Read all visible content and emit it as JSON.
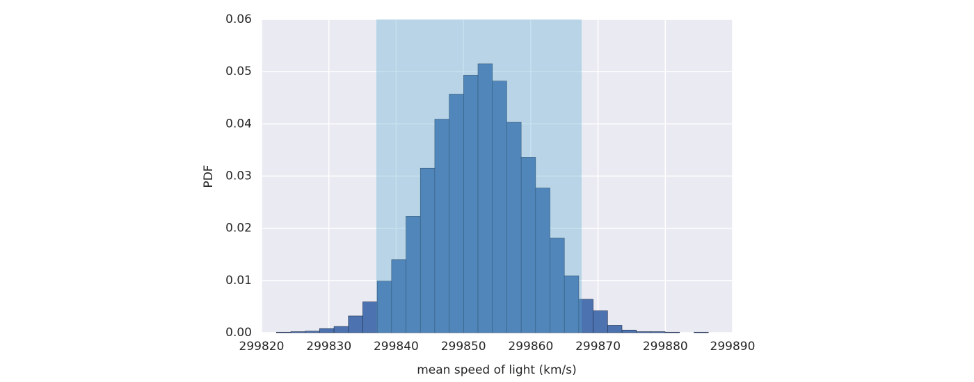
{
  "chart_data": {
    "type": "histogram",
    "xlabel": "mean speed of light (km/s)",
    "ylabel": "PDF",
    "bins": [
      299822.2,
      299824.34,
      299826.48,
      299828.62,
      299830.76,
      299832.9,
      299835.04,
      299837.18,
      299839.32,
      299841.46,
      299843.6,
      299845.74,
      299847.88,
      299850.02,
      299852.16,
      299854.3,
      299856.44,
      299858.58,
      299860.72,
      299862.86,
      299865.0,
      299867.14,
      299869.28,
      299871.42,
      299873.56,
      299875.7,
      299877.84,
      299879.98,
      299882.12,
      299884.26,
      299886.4
    ],
    "values": [
      0.0001,
      0.0002,
      0.0003,
      0.0008,
      0.0012,
      0.0032,
      0.0059,
      0.0099,
      0.014,
      0.0223,
      0.0315,
      0.0409,
      0.0457,
      0.0493,
      0.0515,
      0.0482,
      0.0403,
      0.0336,
      0.0277,
      0.0181,
      0.0109,
      0.0064,
      0.0042,
      0.0014,
      0.0005,
      0.0002,
      0.0002,
      0.0001,
      0,
      0.0001
    ],
    "color": "#4c72b0",
    "span": {
      "range": [
        299837.06,
        299867.57
      ],
      "color": "#5babd0",
      "alpha": 0.35
    },
    "xlim": [
      299820,
      299890
    ],
    "xticks": [
      299820,
      299830,
      299840,
      299850,
      299860,
      299870,
      299880,
      299890
    ],
    "ylim": [
      0,
      0.06
    ],
    "yticks": [
      {
        "value": 0,
        "label": "0.00"
      },
      {
        "value": 0.01,
        "label": "0.01"
      },
      {
        "value": 0.02,
        "label": "0.02"
      },
      {
        "value": 0.03,
        "label": "0.03"
      },
      {
        "value": 0.04,
        "label": "0.04"
      },
      {
        "value": 0.05,
        "label": "0.05"
      },
      {
        "value": 0.06,
        "label": "0.06"
      }
    ],
    "grid": true,
    "background": "#eaeaf2"
  }
}
